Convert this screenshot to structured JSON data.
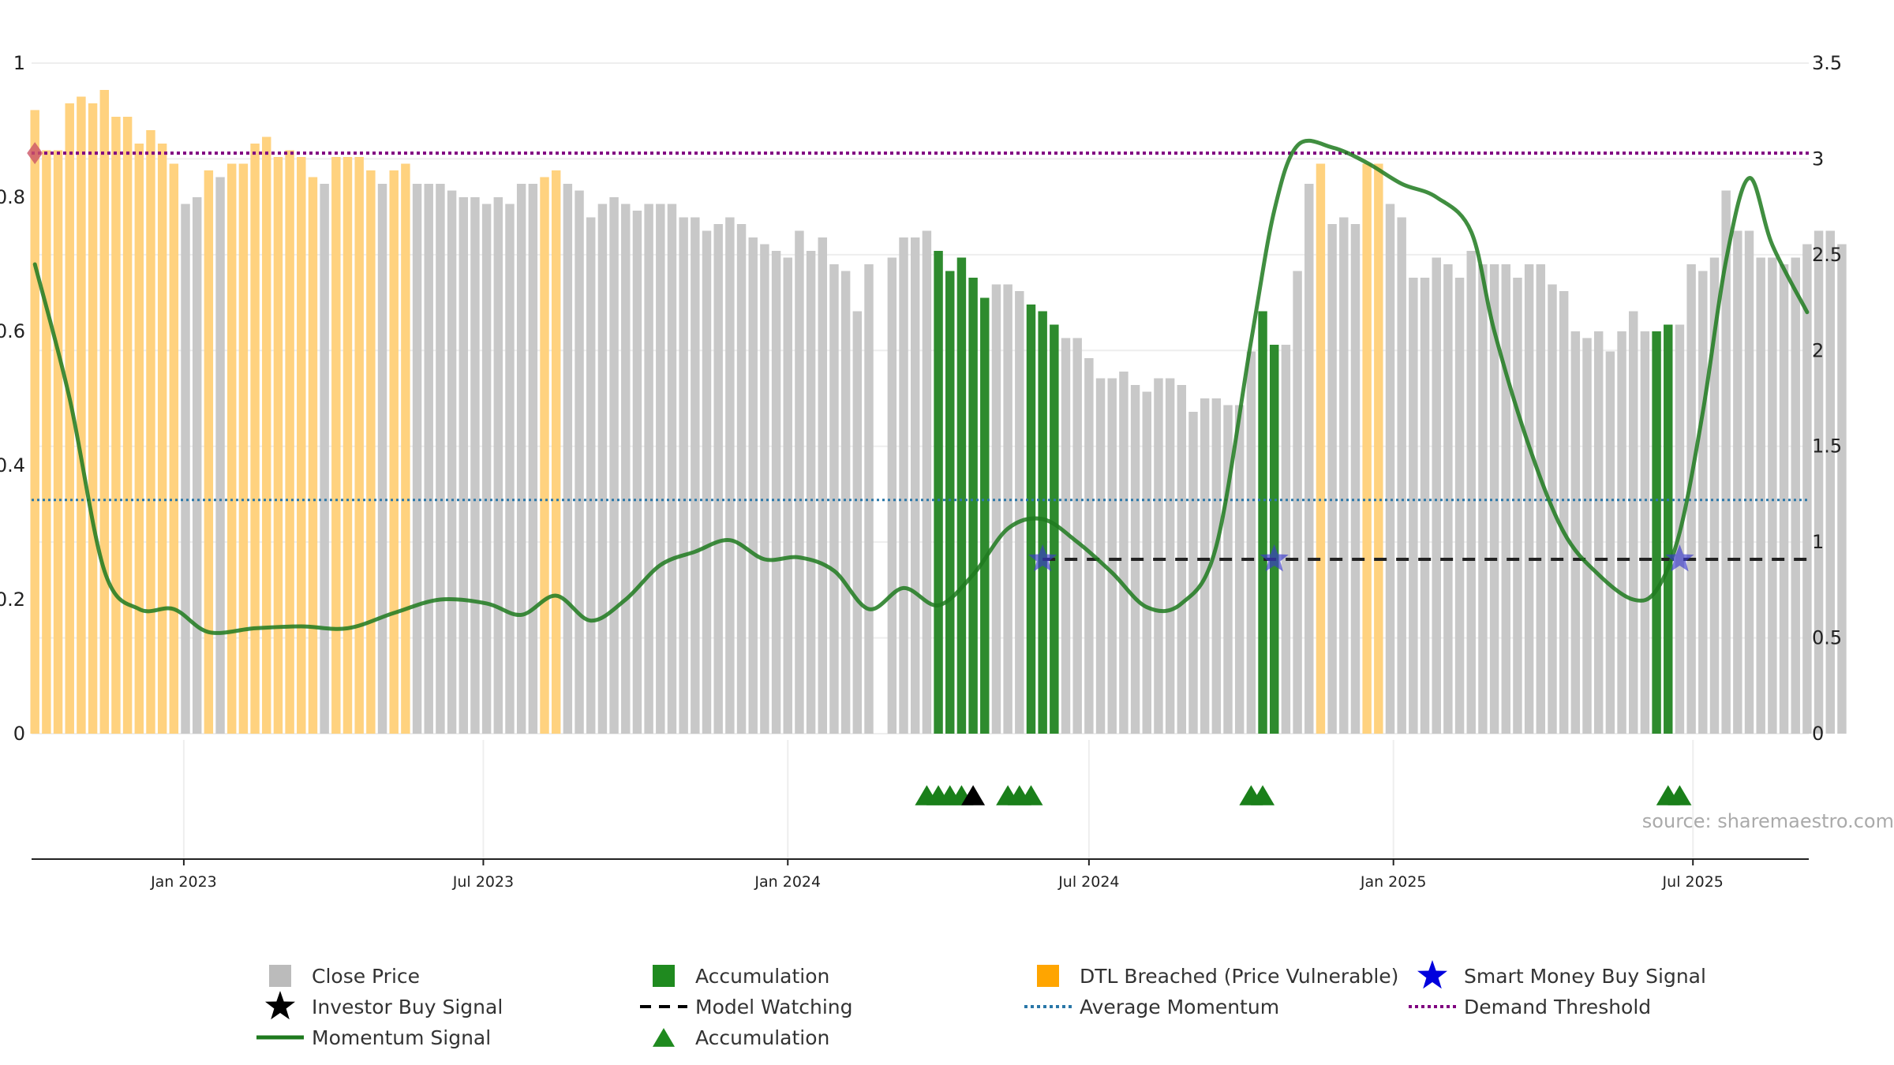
{
  "chart_data": {
    "type": "bar",
    "title": "",
    "source_text": "source: sharemaestro.com",
    "left_axis": {
      "ylim": [
        0,
        1.0
      ],
      "ticks": [
        0,
        0.2,
        0.4,
        0.6,
        0.8,
        1
      ],
      "tick_labels": [
        "0",
        "0.2",
        "0.4",
        "0.6",
        "0.8",
        "1"
      ]
    },
    "right_axis": {
      "ylim": [
        0,
        3.5
      ],
      "ticks": [
        0,
        0.5,
        1,
        1.5,
        2,
        2.5,
        3,
        3.5
      ],
      "tick_labels": [
        "0",
        "0.5",
        "1",
        "1.5",
        "2",
        "2.5",
        "3",
        "3.5"
      ]
    },
    "x_axis": {
      "start": "2022-10-01",
      "end": "2025-09-09",
      "ticks": [
        {
          "date": "2023-01-01",
          "label": "Jan 2023"
        },
        {
          "date": "2023-07-01",
          "label": "Jul 2023"
        },
        {
          "date": "2024-01-01",
          "label": "Jan 2024"
        },
        {
          "date": "2024-07-01",
          "label": "Jul 2024"
        },
        {
          "date": "2025-01-01",
          "label": "Jan 2025"
        },
        {
          "date": "2025-07-01",
          "label": "Jul 2025"
        }
      ]
    },
    "bar_start_date": "2022-10-03",
    "bar_interval_days": 7,
    "colors": {
      "close": "#c8c8c8",
      "accumulation": "#2e8b2e",
      "dtl": "#ffd27f",
      "momentum": "#1e7a1e",
      "average": "#2a77a8",
      "threshold": "#800080",
      "watching": "#222222",
      "smart_money": "#3a3acc",
      "investor": "#000000"
    },
    "close_price": [
      0.93,
      0.87,
      0.87,
      0.94,
      0.95,
      0.94,
      0.96,
      0.92,
      0.92,
      0.88,
      0.9,
      0.88,
      0.85,
      0.79,
      0.8,
      0.84,
      0.83,
      0.85,
      0.85,
      0.88,
      0.89,
      0.86,
      0.87,
      0.86,
      0.83,
      0.82,
      0.86,
      0.86,
      0.86,
      0.84,
      0.82,
      0.84,
      0.85,
      0.82,
      0.82,
      0.82,
      0.81,
      0.8,
      0.8,
      0.79,
      0.8,
      0.79,
      0.82,
      0.82,
      0.83,
      0.84,
      0.82,
      0.81,
      0.77,
      0.79,
      0.8,
      0.79,
      0.78,
      0.79,
      0.79,
      0.79,
      0.77,
      0.77,
      0.75,
      0.76,
      0.77,
      0.76,
      0.74,
      0.73,
      0.72,
      0.71,
      0.75,
      0.72,
      0.74,
      0.7,
      0.69,
      0.63,
      0.7,
      0,
      0.71,
      0.74,
      0.74,
      0.75,
      0.72,
      0.69,
      0.71,
      0.68,
      0.65,
      0.67,
      0.67,
      0.66,
      0.64,
      0.63,
      0.61,
      0.59,
      0.59,
      0.56,
      0.53,
      0.53,
      0.54,
      0.52,
      0.51,
      0.53,
      0.53,
      0.52,
      0.48,
      0.5,
      0.5,
      0.49,
      0.49,
      0.57,
      0.63,
      0.58,
      0.58,
      0.69,
      0.82,
      0.85,
      0.76,
      0.77,
      0.76,
      0.85,
      0.85,
      0.79,
      0.77,
      0.68,
      0.68,
      0.71,
      0.7,
      0.68,
      0.72,
      0.7,
      0.7,
      0.7,
      0.68,
      0.7,
      0.7,
      0.67,
      0.66,
      0.6,
      0.59,
      0.6,
      0.57,
      0.6,
      0.63,
      0.6,
      0.6,
      0.61,
      0.61,
      0.7,
      0.69,
      0.71,
      0.81,
      0.75,
      0.75,
      0.71,
      0.71,
      0.7,
      0.71,
      0.73,
      0.75,
      0.75,
      0.73
    ],
    "bar_category": [
      "d",
      "d",
      "d",
      "d",
      "d",
      "d",
      "d",
      "d",
      "d",
      "d",
      "d",
      "d",
      "d",
      "c",
      "c",
      "d",
      "c",
      "d",
      "d",
      "d",
      "d",
      "d",
      "d",
      "d",
      "d",
      "c",
      "d",
      "d",
      "d",
      "d",
      "c",
      "d",
      "d",
      "c",
      "c",
      "c",
      "c",
      "c",
      "c",
      "c",
      "c",
      "c",
      "c",
      "c",
      "d",
      "d",
      "c",
      "c",
      "c",
      "c",
      "c",
      "c",
      "c",
      "c",
      "c",
      "c",
      "c",
      "c",
      "c",
      "c",
      "c",
      "c",
      "c",
      "c",
      "c",
      "c",
      "c",
      "c",
      "c",
      "c",
      "c",
      "c",
      "c",
      "c",
      "c",
      "c",
      "c",
      "c",
      "a",
      "a",
      "a",
      "a",
      "a",
      "c",
      "c",
      "c",
      "a",
      "a",
      "a",
      "c",
      "c",
      "c",
      "c",
      "c",
      "c",
      "c",
      "c",
      "c",
      "c",
      "c",
      "c",
      "c",
      "c",
      "c",
      "c",
      "c",
      "a",
      "a",
      "c",
      "c",
      "c",
      "d",
      "c",
      "c",
      "c",
      "d",
      "d",
      "c",
      "c",
      "c",
      "c",
      "c",
      "c",
      "c",
      "c",
      "c",
      "c",
      "c",
      "c",
      "c",
      "c",
      "c",
      "c",
      "c",
      "c",
      "c",
      "c",
      "c",
      "c",
      "c",
      "a",
      "a",
      "c",
      "c",
      "c",
      "c",
      "c",
      "c",
      "c",
      "c",
      "c",
      "c",
      "c",
      "c",
      "c"
    ],
    "momentum_signal": {
      "dates": [
        "2022-10-03",
        "2022-10-24",
        "2022-11-14",
        "2022-12-05",
        "2022-12-26",
        "2023-01-16",
        "2023-02-13",
        "2023-03-13",
        "2023-04-10",
        "2023-05-08",
        "2023-06-05",
        "2023-07-03",
        "2023-07-24",
        "2023-08-14",
        "2023-09-04",
        "2023-09-25",
        "2023-10-16",
        "2023-11-06",
        "2023-11-27",
        "2023-12-18",
        "2024-01-08",
        "2024-01-29",
        "2024-02-19",
        "2024-03-11",
        "2024-04-01",
        "2024-04-22",
        "2024-05-13",
        "2024-06-03",
        "2024-06-24",
        "2024-07-15",
        "2024-08-05",
        "2024-08-26",
        "2024-09-16",
        "2024-10-07",
        "2024-10-21",
        "2024-11-04",
        "2024-11-25",
        "2024-12-16",
        "2025-01-06",
        "2025-01-27",
        "2025-02-17",
        "2025-03-03",
        "2025-03-24",
        "2025-04-14",
        "2025-05-05",
        "2025-05-26",
        "2025-06-09",
        "2025-06-23",
        "2025-07-07",
        "2025-07-21",
        "2025-08-04",
        "2025-08-18",
        "2025-09-08"
      ],
      "values": [
        2.45,
        1.75,
        0.85,
        0.65,
        0.65,
        0.53,
        0.55,
        0.56,
        0.55,
        0.63,
        0.7,
        0.68,
        0.62,
        0.72,
        0.59,
        0.7,
        0.88,
        0.95,
        1.01,
        0.91,
        0.92,
        0.85,
        0.65,
        0.76,
        0.67,
        0.83,
        1.07,
        1.12,
        1.0,
        0.84,
        0.66,
        0.68,
        0.98,
        2.05,
        2.73,
        3.07,
        3.06,
        2.98,
        2.87,
        2.8,
        2.62,
        2.1,
        1.5,
        1.05,
        0.83,
        0.7,
        0.75,
        1.05,
        1.68,
        2.47,
        2.9,
        2.55,
        2.2
      ]
    },
    "average_momentum": 1.22,
    "demand_threshold": 3.03,
    "model_watching": {
      "start": "2024-06-03",
      "end": "2025-09-08",
      "value": 0.91
    },
    "smart_money_buy_signals": [
      "2024-06-03",
      "2024-10-21",
      "2025-06-23"
    ],
    "threshold_marker_date": "2022-10-03",
    "accumulation_markers": [
      "2024-03-25",
      "2024-04-01",
      "2024-04-08",
      "2024-04-15",
      "2024-05-13",
      "2024-05-20",
      "2024-05-27",
      "2024-10-07",
      "2024-10-14",
      "2025-06-16",
      "2025-06-23"
    ],
    "investor_buy_markers": [
      "2024-04-22"
    ],
    "legend": [
      {
        "label": "Close Price",
        "symbol": "square",
        "color": "#bbbbbb"
      },
      {
        "label": "Accumulation",
        "symbol": "square",
        "color": "#1f8a1f"
      },
      {
        "label": "DTL Breached (Price Vulnerable)",
        "symbol": "square",
        "color": "#ffa500"
      },
      {
        "label": "Smart Money Buy Signal",
        "symbol": "star",
        "color": "#0000dd"
      },
      {
        "label": "Investor Buy Signal",
        "symbol": "star",
        "color": "#000000"
      },
      {
        "label": "Model Watching",
        "symbol": "dash",
        "color": "#000000"
      },
      {
        "label": "Average Momentum",
        "symbol": "dot",
        "color": "#2a77a8"
      },
      {
        "label": "Demand Threshold",
        "symbol": "dot",
        "color": "#800080"
      },
      {
        "label": "Momentum Signal",
        "symbol": "line",
        "color": "#1e7a1e"
      },
      {
        "label": "Accumulation",
        "symbol": "triangle",
        "color": "#1f8a1f"
      }
    ]
  }
}
